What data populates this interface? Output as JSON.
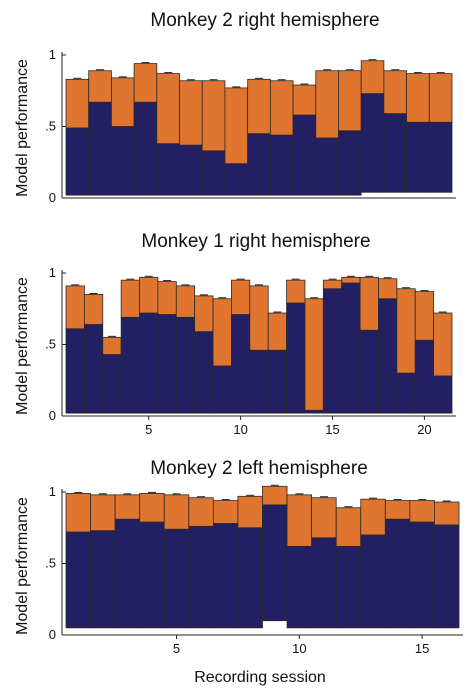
{
  "colors": {
    "top": "#e07530",
    "bottom": "#221f63",
    "edge": "#2a2a2a"
  },
  "chart_data": [
    {
      "type": "bar",
      "stacked": true,
      "title": "Monkey 2 right hemisphere",
      "ylabel": "Model performance",
      "xlabel": "",
      "ylim": [
        0,
        1
      ],
      "yticks": [
        "0",
        ".5",
        "1"
      ],
      "yticks_values": [
        0,
        0.5,
        1
      ],
      "xlim": [
        0.5,
        17.5
      ],
      "xticks": [],
      "x": [
        1,
        2,
        3,
        4,
        5,
        6,
        7,
        8,
        9,
        10,
        11,
        12,
        13,
        14,
        15,
        16,
        17
      ],
      "series": [
        {
          "values": [
            0.47,
            0.65,
            0.48,
            0.65,
            0.36,
            0.35,
            0.31,
            0.22,
            0.43,
            0.42,
            0.56,
            0.4,
            0.45,
            0.69,
            0.55,
            0.49,
            0.49
          ]
        },
        {
          "values": [
            0.34,
            0.22,
            0.34,
            0.27,
            0.49,
            0.45,
            0.49,
            0.53,
            0.38,
            0.38,
            0.21,
            0.47,
            0.42,
            0.23,
            0.3,
            0.34,
            0.34
          ]
        }
      ],
      "base": [
        0.02,
        0.02,
        0.02,
        0.02,
        0.02,
        0.02,
        0.02,
        0.02,
        0.02,
        0.02,
        0.02,
        0.02,
        0.02,
        0.04,
        0.04,
        0.04,
        0.04
      ]
    },
    {
      "type": "bar",
      "stacked": true,
      "title": "Monkey 1 right hemisphere",
      "ylabel": "Model performance",
      "xlabel": "",
      "ylim": [
        0,
        1
      ],
      "yticks": [
        "0",
        ".5",
        "1"
      ],
      "yticks_values": [
        0,
        0.5,
        1
      ],
      "xlim": [
        0.5,
        21.5
      ],
      "xticks": [
        "5",
        "10",
        "15",
        "20"
      ],
      "xticks_values": [
        5,
        10,
        15,
        20
      ],
      "x": [
        1,
        2,
        3,
        4,
        5,
        6,
        7,
        8,
        9,
        10,
        11,
        12,
        13,
        14,
        15,
        16,
        17,
        18,
        19,
        20,
        21
      ],
      "series": [
        {
          "values": [
            0.59,
            0.62,
            0.41,
            0.67,
            0.7,
            0.69,
            0.67,
            0.57,
            0.33,
            0.69,
            0.44,
            0.44,
            0.77,
            0.02,
            0.87,
            0.91,
            0.58,
            0.8,
            0.28,
            0.51,
            0.26
          ]
        },
        {
          "values": [
            0.3,
            0.21,
            0.12,
            0.26,
            0.25,
            0.23,
            0.22,
            0.25,
            0.47,
            0.24,
            0.45,
            0.26,
            0.16,
            0.78,
            0.06,
            0.04,
            0.37,
            0.14,
            0.59,
            0.34,
            0.44
          ]
        }
      ],
      "base": [
        0.02,
        0.02,
        0.02,
        0.02,
        0.02,
        0.02,
        0.02,
        0.02,
        0.02,
        0.02,
        0.02,
        0.02,
        0.02,
        0.02,
        0.02,
        0.02,
        0.02,
        0.02,
        0.02,
        0.02,
        0.02
      ]
    },
    {
      "type": "bar",
      "stacked": true,
      "title": "Monkey 2 left hemisphere",
      "ylabel": "Model performance",
      "xlabel": "Recording session",
      "ylim": [
        0,
        1
      ],
      "yticks": [
        "0",
        ".5",
        "1"
      ],
      "yticks_values": [
        0,
        0.5,
        1
      ],
      "xlim": [
        0.5,
        16.5
      ],
      "xticks": [
        "5",
        "10",
        "15"
      ],
      "xticks_values": [
        5,
        10,
        15
      ],
      "x": [
        1,
        2,
        3,
        4,
        5,
        6,
        7,
        8,
        9,
        10,
        11,
        12,
        13,
        14,
        15,
        16
      ],
      "series": [
        {
          "values": [
            0.67,
            0.68,
            0.76,
            0.74,
            0.69,
            0.71,
            0.73,
            0.7,
            0.81,
            0.57,
            0.63,
            0.57,
            0.65,
            0.76,
            0.74,
            0.72
          ]
        },
        {
          "values": [
            0.27,
            0.25,
            0.17,
            0.2,
            0.24,
            0.2,
            0.16,
            0.22,
            0.13,
            0.36,
            0.28,
            0.27,
            0.25,
            0.13,
            0.15,
            0.16
          ]
        }
      ],
      "base": [
        0.05,
        0.05,
        0.05,
        0.05,
        0.05,
        0.05,
        0.05,
        0.05,
        0.1,
        0.05,
        0.05,
        0.05,
        0.05,
        0.05,
        0.05,
        0.05
      ]
    }
  ]
}
